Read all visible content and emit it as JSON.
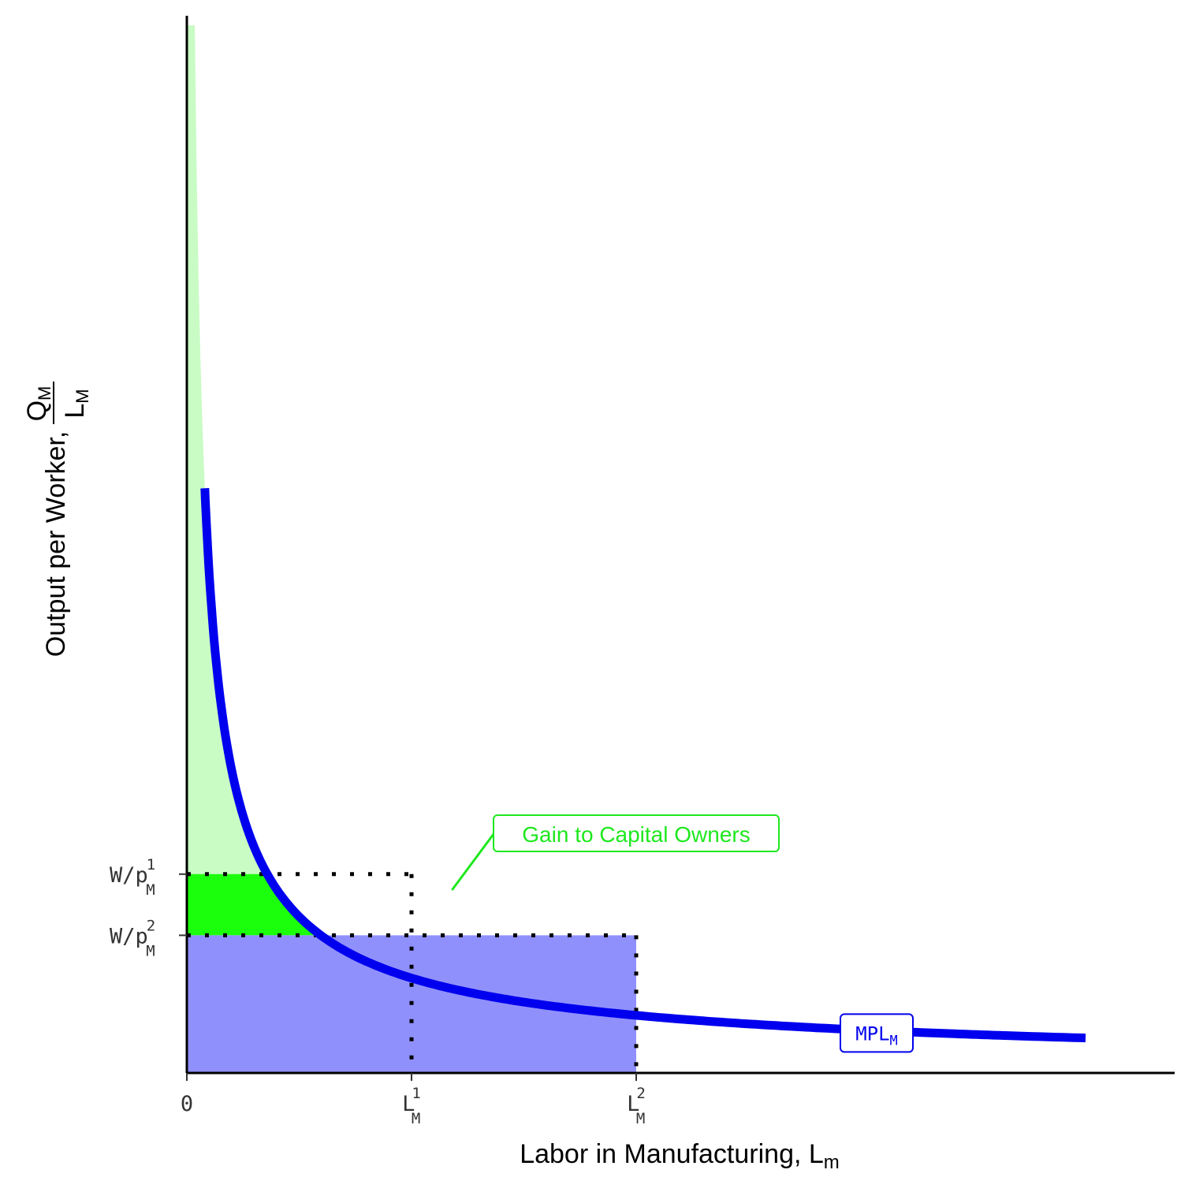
{
  "chart_data": {
    "type": "line",
    "title": "",
    "xlabel": {
      "main": "Labor in Manufacturing, L",
      "sub": "m"
    },
    "ylabel": {
      "main": "Output per Worker,",
      "numerator": "Q",
      "numerator_sub": "M",
      "denominator": "L",
      "denominator_sub": "M"
    },
    "xlim": [
      0,
      11
    ],
    "ylim": [
      0,
      13.8
    ],
    "grid": false,
    "series": [
      {
        "name": "MPL",
        "name_sub": "M",
        "function": "y = 2.4 / x^0.72",
        "x_range": [
          0.2,
          10
        ],
        "sample_points": [
          [
            0.2,
            7.6
          ],
          [
            0.5,
            3.7
          ],
          [
            1,
            2.4
          ],
          [
            1.5,
            1.8
          ],
          [
            2.5,
            1.24
          ],
          [
            5,
            0.8
          ],
          [
            7.5,
            0.6
          ],
          [
            10,
            0.46
          ]
        ],
        "color": "#0000ee"
      }
    ],
    "x_ticks": [
      {
        "x": 0,
        "label": "0",
        "sup": "",
        "sub": ""
      },
      {
        "x": 2.5,
        "label": "L",
        "sup": "1",
        "sub": "M"
      },
      {
        "x": 5,
        "label": "L",
        "sup": "2",
        "sub": "M"
      }
    ],
    "y_ticks": [
      {
        "y": 2.6,
        "label": "W/p",
        "sup": "1",
        "sub": "M"
      },
      {
        "y": 1.8,
        "label": "W/p",
        "sup": "2",
        "sub": "M"
      }
    ],
    "reference_lines": [
      {
        "type": "horizontal",
        "y": 2.6,
        "x_to": 2.5,
        "style": "dotted"
      },
      {
        "type": "horizontal",
        "y": 1.8,
        "x_to": 5,
        "style": "dotted"
      },
      {
        "type": "vertical",
        "x": 2.5,
        "y_to": 2.6,
        "style": "dotted"
      },
      {
        "type": "vertical",
        "x": 5,
        "y_to": 1.8,
        "style": "dotted"
      }
    ],
    "regions": [
      {
        "name": "area-under-curve",
        "color": "#c8fcc4",
        "description_only": true
      },
      {
        "name": "gain-band",
        "color": "#1cff0c",
        "y_range": [
          1.8,
          2.6
        ]
      },
      {
        "name": "wage-bill",
        "color": "#9090fc",
        "y_range": [
          0,
          1.8
        ],
        "x_range": [
          0,
          5
        ]
      }
    ],
    "annotations": [
      {
        "text": "Gain to Capital Owners",
        "color": "#1ee81e",
        "points_to": [
          2.95,
          2.33
        ]
      }
    ]
  }
}
